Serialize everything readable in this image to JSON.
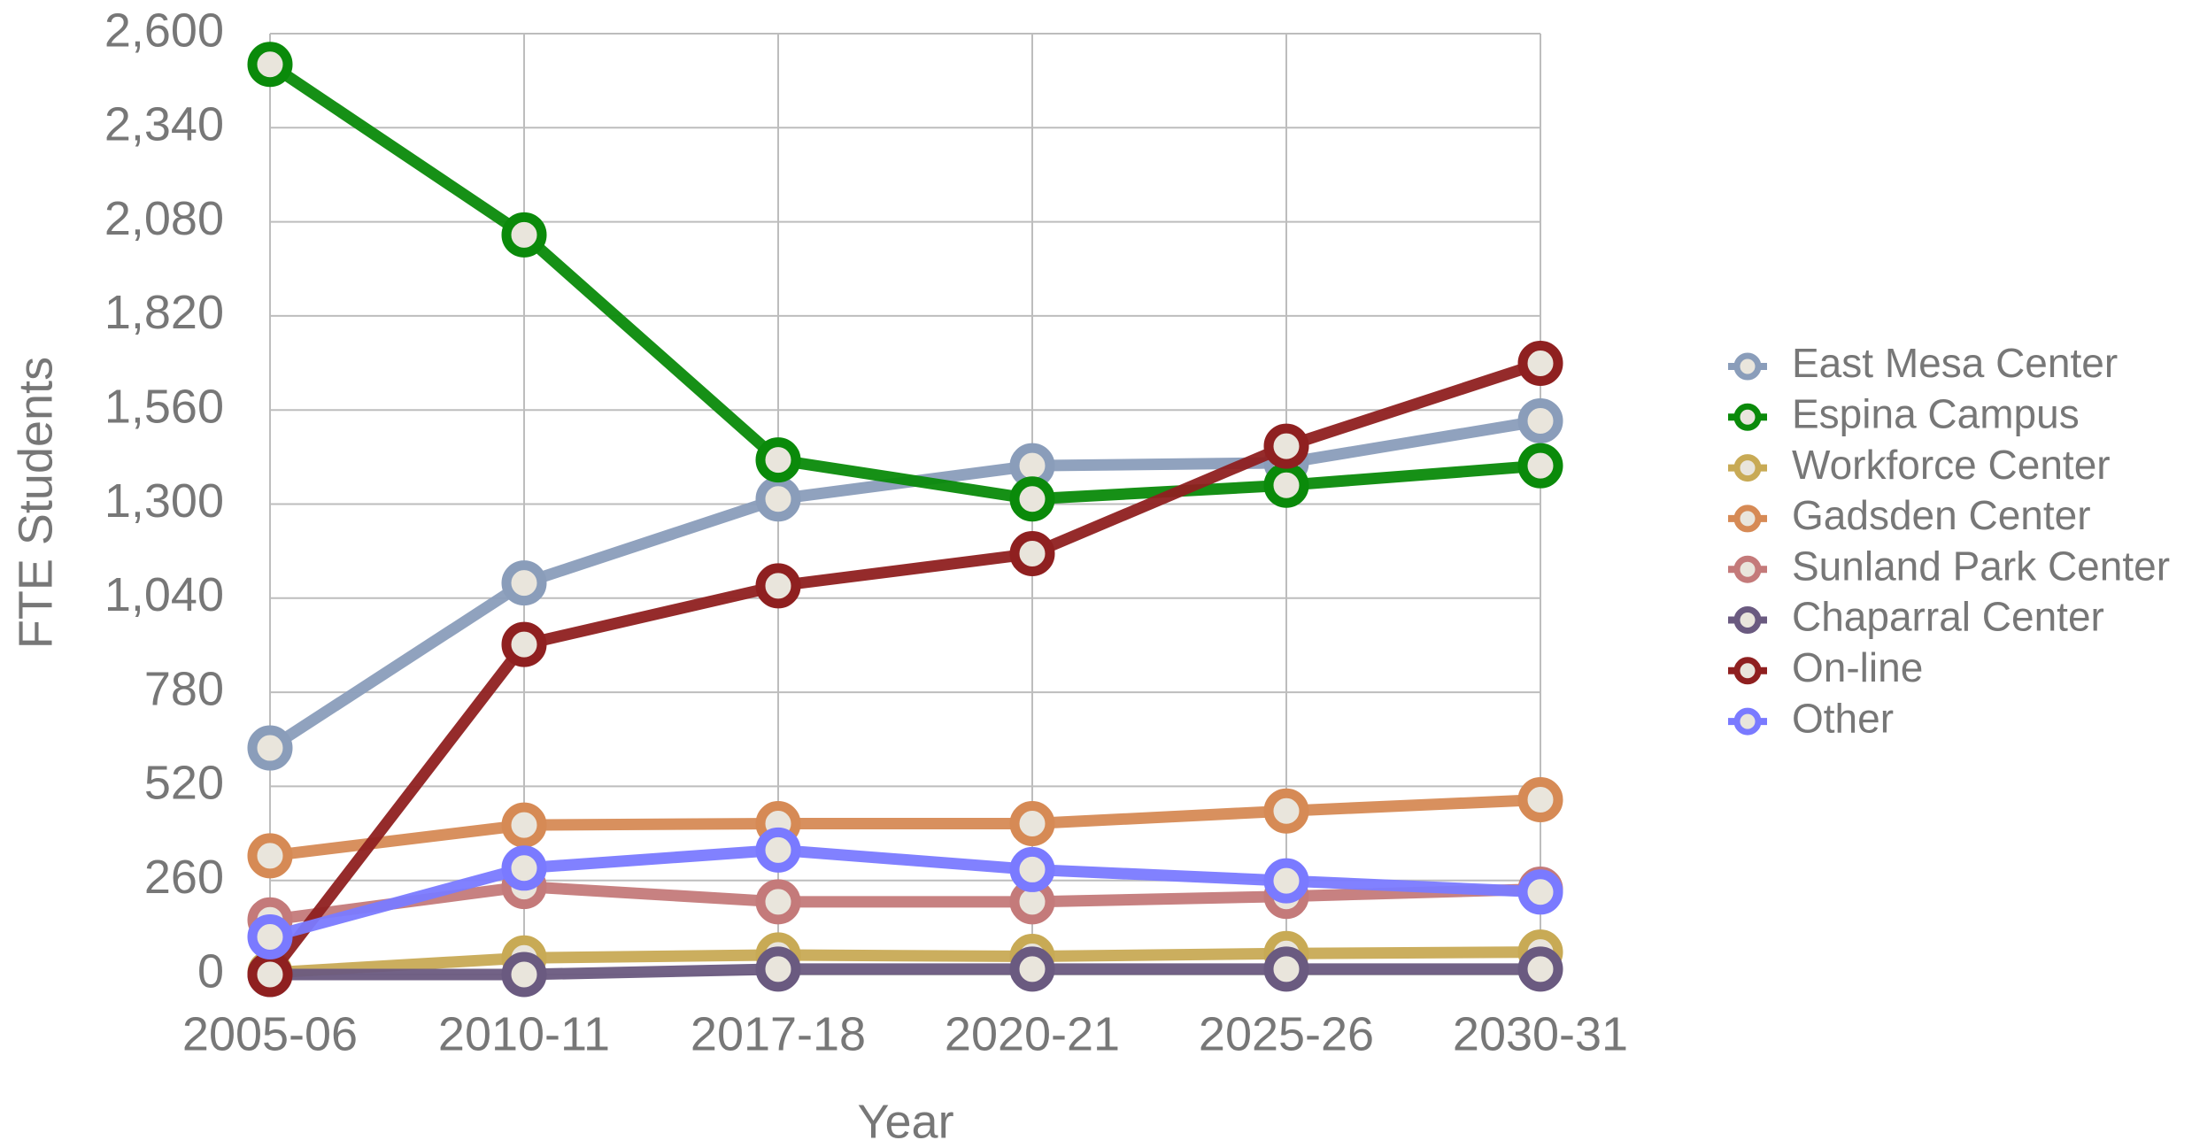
{
  "chart_data": {
    "type": "line",
    "x_label": "Year",
    "y_label": "FTE Students",
    "categories": [
      "2005-06",
      "2010-11",
      "2017-18",
      "2020-21",
      "2025-26",
      "2030-31"
    ],
    "series": [
      {
        "name": "East Mesa Center",
        "color": "#8a9dba",
        "values": [
          626,
          1082,
          1314,
          1406,
          1414,
          1530
        ]
      },
      {
        "name": "Espina Campus",
        "color": "#0a8a0a",
        "values": [
          2515,
          2044,
          1422,
          1314,
          1352,
          1406
        ]
      },
      {
        "name": "Workforce Center",
        "color": "#c8aa55",
        "values": [
          5,
          46,
          54,
          50,
          58,
          62
        ]
      },
      {
        "name": "Gadsden Center",
        "color": "#d68a55",
        "values": [
          328,
          413,
          417,
          417,
          452,
          483
        ]
      },
      {
        "name": "Sunland Park Center",
        "color": "#c47a7a",
        "values": [
          151,
          243,
          201,
          201,
          216,
          236
        ]
      },
      {
        "name": "Chaparral Center",
        "color": "#6a5a80",
        "values": [
          0,
          0,
          15,
          15,
          15,
          15
        ]
      },
      {
        "name": "On-line",
        "color": "#8f2020",
        "values": [
          0,
          912,
          1074,
          1163,
          1460,
          1689
        ]
      },
      {
        "name": "Other",
        "color": "#7a7aff",
        "values": [
          104,
          294,
          344,
          290,
          259,
          228
        ]
      }
    ],
    "ylim": [
      0,
      2600
    ],
    "yticks": [
      0,
      260,
      520,
      780,
      {
        "value": 1040,
        "label": "1,040"
      },
      {
        "value": 1300,
        "label": "1,300"
      },
      {
        "value": 1560,
        "label": "1,560"
      },
      {
        "value": 1820,
        "label": "1,820"
      },
      {
        "value": 2080,
        "label": "2,080"
      },
      {
        "value": 2340,
        "label": "2,340"
      },
      {
        "value": 2600,
        "label": "2,600"
      }
    ],
    "grid": true,
    "legend": "right"
  }
}
